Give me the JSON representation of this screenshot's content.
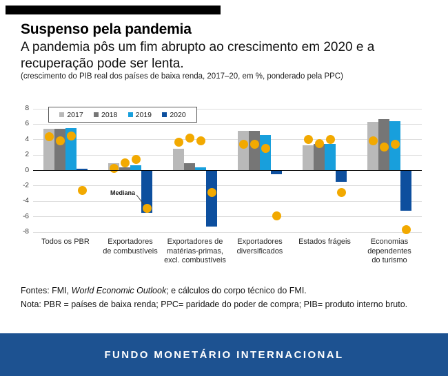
{
  "header": {
    "title": "Suspenso pela pandemia",
    "subtitle": "A pandemia pôs um fim abrupto ao crescimento em 2020 e a recuperação pode ser lenta.",
    "spec_note": "(crescimento do PIB real dos países de baixa renda, 2017–20, em %, ponderado pela PPC)"
  },
  "footnotes": {
    "sources_prefix": "Fontes: FMI, ",
    "sources_italic": "World Economic Outlook",
    "sources_suffix": "; e cálculos do corpo técnico do FMI.",
    "note": "Nota: PBR = países de baixa renda; PPC= paridade do poder de compra; PIB= produto interno bruto."
  },
  "footer": {
    "brand_text": "FUNDO MONETÁRIO INTERNACIONAL"
  },
  "colors": {
    "top_accent_bar": "#000000",
    "footer_background": "#1d5291",
    "bar_2017": "#b9b9b9",
    "bar_2018": "#767676",
    "bar_2019": "#189fdc",
    "bar_2020": "#0d4f9e",
    "median_dot": "#f2a900",
    "gridline": "#dcdcdc",
    "zero_line": "#000000"
  },
  "chart_data": {
    "type": "bar",
    "title": "Suspenso pela pandemia",
    "subtitle": "(crescimento do PIB real dos países de baixa renda, 2017–20, em %, ponderado pela PPC)",
    "categories": [
      "Todos os PBR",
      "Exportadores de combustíveis",
      "Exportadores de matérias-primas, excl. combustíveis",
      "Exportadores diversificados",
      "Estados frágeis",
      "Economias dependentes do turismo"
    ],
    "category_label_lines": [
      [
        "Todos os PBR"
      ],
      [
        "Exportadores",
        "de combustíveis"
      ],
      [
        "Exportadores de",
        "matérias-primas,",
        "excl. combustíveis"
      ],
      [
        "Exportadores",
        "diversificados"
      ],
      [
        "Estados frágeis"
      ],
      [
        "Economias",
        "dependentes",
        "do turismo"
      ]
    ],
    "series": [
      {
        "name": "2017",
        "color": "#b9b9b9",
        "values": [
          5.4,
          0.9,
          2.8,
          5.1,
          3.3,
          6.3
        ]
      },
      {
        "name": "2018",
        "color": "#767676",
        "values": [
          5.4,
          0.4,
          0.9,
          5.1,
          3.4,
          6.7
        ]
      },
      {
        "name": "2019",
        "color": "#189fdc",
        "values": [
          5.5,
          0.7,
          0.4,
          4.6,
          3.4,
          6.4
        ]
      },
      {
        "name": "2020",
        "color": "#0d4f9e",
        "values": [
          0.2,
          -5.5,
          -7.3,
          -0.5,
          -1.5,
          -5.2
        ]
      }
    ],
    "median_series": [
      {
        "name": "2017",
        "values": [
          4.4,
          0.3,
          3.7,
          3.4,
          4.0,
          3.8
        ]
      },
      {
        "name": "2018",
        "values": [
          3.8,
          1.0,
          4.2,
          3.4,
          3.5,
          3.0
        ]
      },
      {
        "name": "2019",
        "values": [
          4.5,
          1.4,
          3.8,
          2.9,
          4.0,
          3.4
        ]
      },
      {
        "name": "2020",
        "values": [
          -2.6,
          -4.9,
          -2.9,
          -5.9,
          -2.9,
          -7.7
        ]
      }
    ],
    "median_label": "Mediana",
    "median_color": "#f2a900",
    "ylim": [
      -8,
      8
    ],
    "yticks": [
      8,
      6,
      4,
      2,
      0,
      -2,
      -4,
      -6,
      -8
    ],
    "grid": true,
    "legend": [
      "2017",
      "2018",
      "2019",
      "2020"
    ],
    "legend_position": "top-left",
    "xlabel": "",
    "ylabel": ""
  }
}
